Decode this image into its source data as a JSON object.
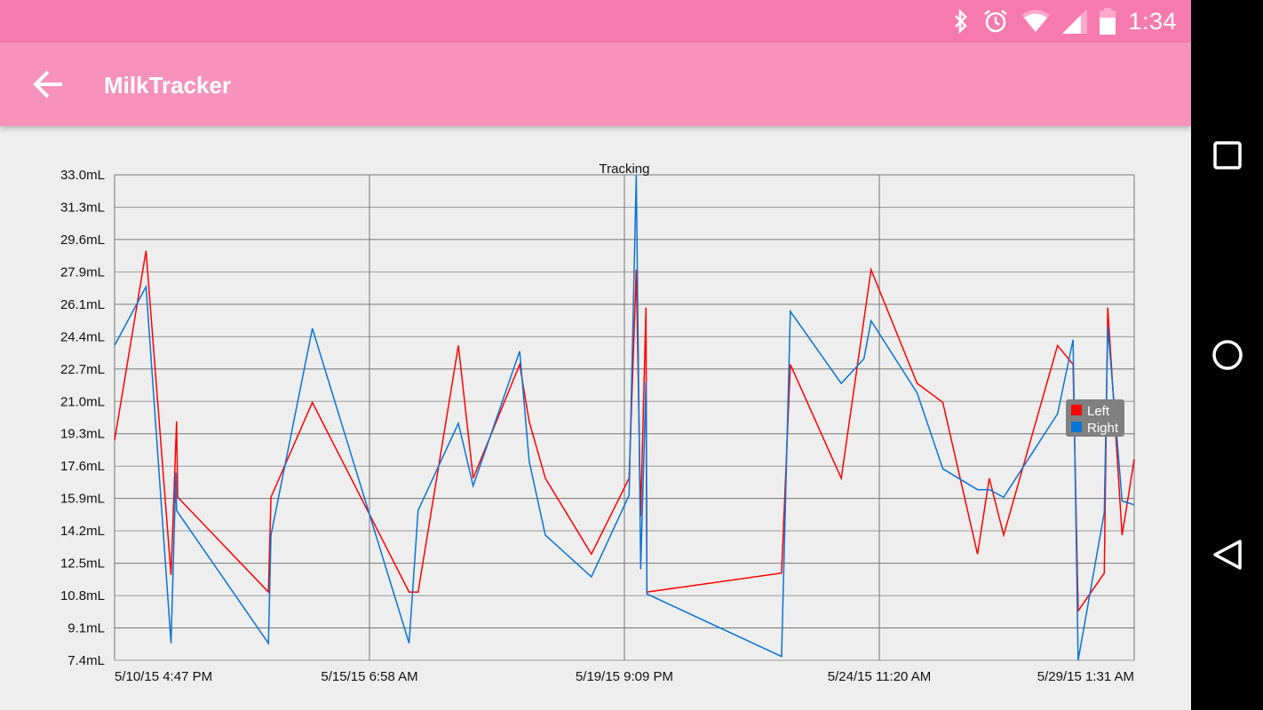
{
  "status_bar": {
    "time": "1:34",
    "icons": [
      "bluetooth-icon",
      "alarm-icon",
      "wifi-icon",
      "cell-signal-icon",
      "battery-icon"
    ],
    "color": "#f77aae"
  },
  "app_bar": {
    "title": "MilkTracker",
    "back_icon": "arrow-left-icon",
    "color": "#f792bd"
  },
  "nav_bar": {
    "buttons": [
      "recents-square-icon",
      "home-circle-icon",
      "back-triangle-icon"
    ]
  },
  "chart_data": {
    "type": "line",
    "title": "Tracking",
    "xlabel": "",
    "ylabel": "",
    "grid": true,
    "legend_placement": "right",
    "xlim": [
      "2015-05-10 16:47",
      "2015-05-29 01:31"
    ],
    "ylim": [
      7.4,
      33.0
    ],
    "x_tick_labels": [
      "5/10/15 4:47 PM",
      "5/15/15 6:58 AM",
      "5/19/15 9:09 PM",
      "5/24/15 11:20 AM",
      "5/29/15 1:31 AM"
    ],
    "y_tick_labels": [
      "33.0mL",
      "31.3mL",
      "29.6mL",
      "27.9mL",
      "26.1mL",
      "24.4mL",
      "22.7mL",
      "21.0mL",
      "19.3mL",
      "17.6mL",
      "15.9mL",
      "14.2mL",
      "12.5mL",
      "10.8mL",
      "9.1mL",
      "7.4mL"
    ],
    "series": [
      {
        "name": "Left",
        "color": "#ff0000",
        "points": [
          [
            "2015-05-10 16:47",
            19.0
          ],
          [
            "2015-05-11 06:23",
            29.0
          ],
          [
            "2015-05-11 17:11",
            11.9
          ],
          [
            "2015-05-11 19:35",
            20.0
          ],
          [
            "2015-05-11 20:05",
            16.0
          ],
          [
            "2015-05-13 11:17",
            11.0
          ],
          [
            "2015-05-13 12:23",
            16.0
          ],
          [
            "2015-05-14 06:17",
            21.0
          ],
          [
            "2015-05-16 00:05",
            11.0
          ],
          [
            "2015-05-16 03:59",
            11.0
          ],
          [
            "2015-05-16 21:23",
            24.0
          ],
          [
            "2015-05-17 03:47",
            17.0
          ],
          [
            "2015-05-17 23:53",
            23.0
          ],
          [
            "2015-05-18 03:59",
            20.0
          ],
          [
            "2015-05-18 10:59",
            17.0
          ],
          [
            "2015-05-19 06:53",
            13.0
          ],
          [
            "2015-05-19 23:11",
            17.0
          ],
          [
            "2015-05-20 02:17",
            28.0
          ],
          [
            "2015-05-20 04:11",
            15.0
          ],
          [
            "2015-05-20 06:29",
            26.0
          ],
          [
            "2015-05-20 06:53",
            11.0
          ],
          [
            "2015-05-22 17:05",
            12.0
          ],
          [
            "2015-05-22 20:53",
            23.0
          ],
          [
            "2015-05-23 18:53",
            17.0
          ],
          [
            "2015-05-24 07:47",
            28.0
          ],
          [
            "2015-05-25 03:41",
            22.0
          ],
          [
            "2015-05-25 14:47",
            21.0
          ],
          [
            "2015-05-26 05:47",
            13.0
          ],
          [
            "2015-05-26 10:53",
            17.0
          ],
          [
            "2015-05-26 17:05",
            14.0
          ],
          [
            "2015-05-27 16:23",
            24.0
          ],
          [
            "2015-05-27 23:05",
            23.0
          ],
          [
            "2015-05-28 01:17",
            10.0
          ],
          [
            "2015-05-28 12:35",
            12.0
          ],
          [
            "2015-05-28 14:05",
            26.0
          ],
          [
            "2015-05-28 20:17",
            14.0
          ],
          [
            "2015-05-29 01:31",
            18.0
          ]
        ]
      },
      {
        "name": "Right",
        "color": "#0a74d6",
        "points": [
          [
            "2015-05-10 16:47",
            24.0
          ],
          [
            "2015-05-11 06:23",
            27.1
          ],
          [
            "2015-05-11 17:11",
            8.3
          ],
          [
            "2015-05-11 19:17",
            17.3
          ],
          [
            "2015-05-11 19:35",
            15.3
          ],
          [
            "2015-05-13 11:17",
            8.3
          ],
          [
            "2015-05-13 12:23",
            14.0
          ],
          [
            "2015-05-14 06:17",
            24.9
          ],
          [
            "2015-05-16 00:05",
            8.3
          ],
          [
            "2015-05-16 03:59",
            15.3
          ],
          [
            "2015-05-16 21:23",
            19.9
          ],
          [
            "2015-05-17 03:47",
            16.6
          ],
          [
            "2015-05-17 23:53",
            23.7
          ],
          [
            "2015-05-18 03:59",
            17.9
          ],
          [
            "2015-05-18 10:59",
            14.0
          ],
          [
            "2015-05-19 06:53",
            11.8
          ],
          [
            "2015-05-19 23:11",
            16.1
          ],
          [
            "2015-05-20 02:17",
            33.0
          ],
          [
            "2015-05-20 04:11",
            12.2
          ],
          [
            "2015-05-20 06:29",
            22.1
          ],
          [
            "2015-05-20 06:53",
            10.9
          ],
          [
            "2015-05-22 17:05",
            7.6
          ],
          [
            "2015-05-22 20:53",
            25.8
          ],
          [
            "2015-05-23 18:53",
            22.0
          ],
          [
            "2015-05-24 04:41",
            23.3
          ],
          [
            "2015-05-24 07:47",
            25.3
          ],
          [
            "2015-05-25 03:41",
            21.5
          ],
          [
            "2015-05-25 14:47",
            17.5
          ],
          [
            "2015-05-26 05:47",
            16.4
          ],
          [
            "2015-05-26 10:53",
            16.4
          ],
          [
            "2015-05-26 17:05",
            16.0
          ],
          [
            "2015-05-27 16:23",
            20.4
          ],
          [
            "2015-05-27 23:05",
            24.3
          ],
          [
            "2015-05-28 01:17",
            7.4
          ],
          [
            "2015-05-28 12:35",
            15.2
          ],
          [
            "2015-05-28 14:05",
            25.0
          ],
          [
            "2015-05-28 20:17",
            15.8
          ],
          [
            "2015-05-29 01:31",
            15.6
          ]
        ]
      }
    ]
  }
}
